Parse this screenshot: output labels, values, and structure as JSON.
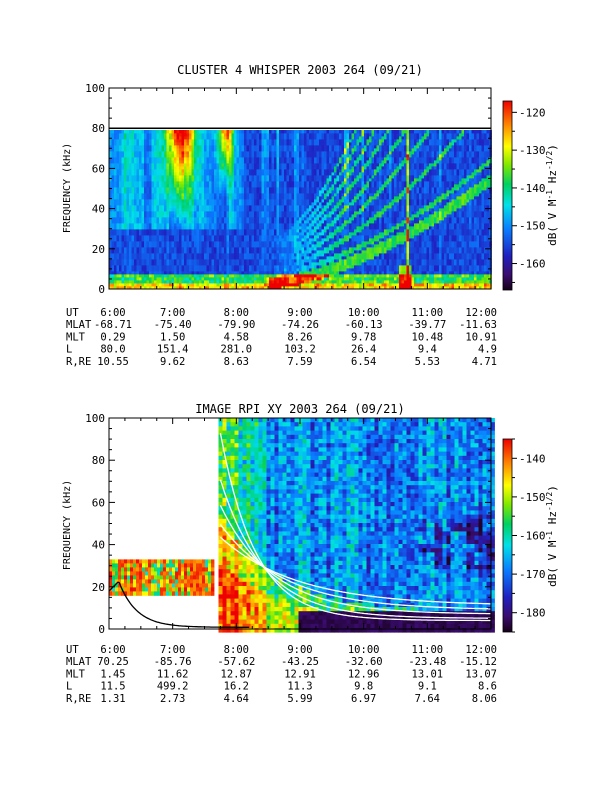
{
  "chart_data": [
    {
      "type": "heatmap",
      "title": "CLUSTER 4 WHISPER 2003 264 (09/21)",
      "ylabel": "FREQUENCY (kHz)",
      "ylim": [
        0,
        100
      ],
      "yticks": [
        "0",
        "20",
        "40",
        "60",
        "80",
        "100"
      ],
      "xticks": [
        "6:00",
        "7:00",
        "8:00",
        "9:00",
        "10:00",
        "11:00",
        "12:00"
      ],
      "colorbar": {
        "label": "dB( V M-1 Hz-1/2)",
        "range": [
          -167,
          -117
        ],
        "ticks": [
          "-120",
          "-130",
          "-140",
          "-150",
          "-160"
        ]
      },
      "data_extent_khz": [
        0,
        80
      ],
      "ephemeris": {
        "labels": [
          "UT",
          "MLAT",
          "MLT",
          "L",
          "R,RE"
        ],
        "UT": [
          "6:00",
          "7:00",
          "8:00",
          "9:00",
          "10:00",
          "11:00",
          "12:00"
        ],
        "MLAT": [
          "-68.71",
          "-75.40",
          "-79.90",
          "-74.26",
          "-60.13",
          "-39.77",
          "-11.63"
        ],
        "MLT": [
          "0.29",
          "1.50",
          "4.58",
          "8.26",
          "9.78",
          "10.48",
          "10.91"
        ],
        "L": [
          "80.0",
          "151.4",
          "281.0",
          "103.2",
          "26.4",
          "9.4",
          "4.9"
        ],
        "R,RE": [
          "10.55",
          "9.62",
          "8.63",
          "7.59",
          "6.54",
          "5.53",
          "4.71"
        ]
      }
    },
    {
      "type": "heatmap",
      "title": "IMAGE RPI XY 2003 264 (09/21)",
      "ylabel": "FREQUENCY (kHz)",
      "ylim": [
        0,
        100
      ],
      "yticks": [
        "0",
        "20",
        "40",
        "60",
        "80",
        "100"
      ],
      "xticks": [
        "6:00",
        "7:00",
        "8:00",
        "9:00",
        "10:00",
        "11:00",
        "12:00"
      ],
      "colorbar": {
        "label": "dB( V M-1 Hz-1/2)",
        "range": [
          -185,
          -135
        ],
        "ticks": [
          "-140",
          "-150",
          "-160",
          "-170",
          "-180"
        ]
      },
      "ephemeris": {
        "labels": [
          "UT",
          "MLAT",
          "MLT",
          "L",
          "R,RE"
        ],
        "UT": [
          "6:00",
          "7:00",
          "8:00",
          "9:00",
          "10:00",
          "11:00",
          "12:00"
        ],
        "MLAT": [
          "70.25",
          "-85.76",
          "-57.62",
          "-43.25",
          "-32.60",
          "-23.48",
          "-15.12"
        ],
        "MLT": [
          "1.45",
          "11.62",
          "12.87",
          "12.91",
          "12.96",
          "13.01",
          "13.07"
        ],
        "L": [
          "11.5",
          "499.2",
          "16.2",
          "11.3",
          "9.8",
          "9.1",
          "8.6"
        ],
        "R,RE": [
          "1.31",
          "2.73",
          "4.64",
          "5.99",
          "6.97",
          "7.64",
          "8.06"
        ]
      }
    }
  ]
}
